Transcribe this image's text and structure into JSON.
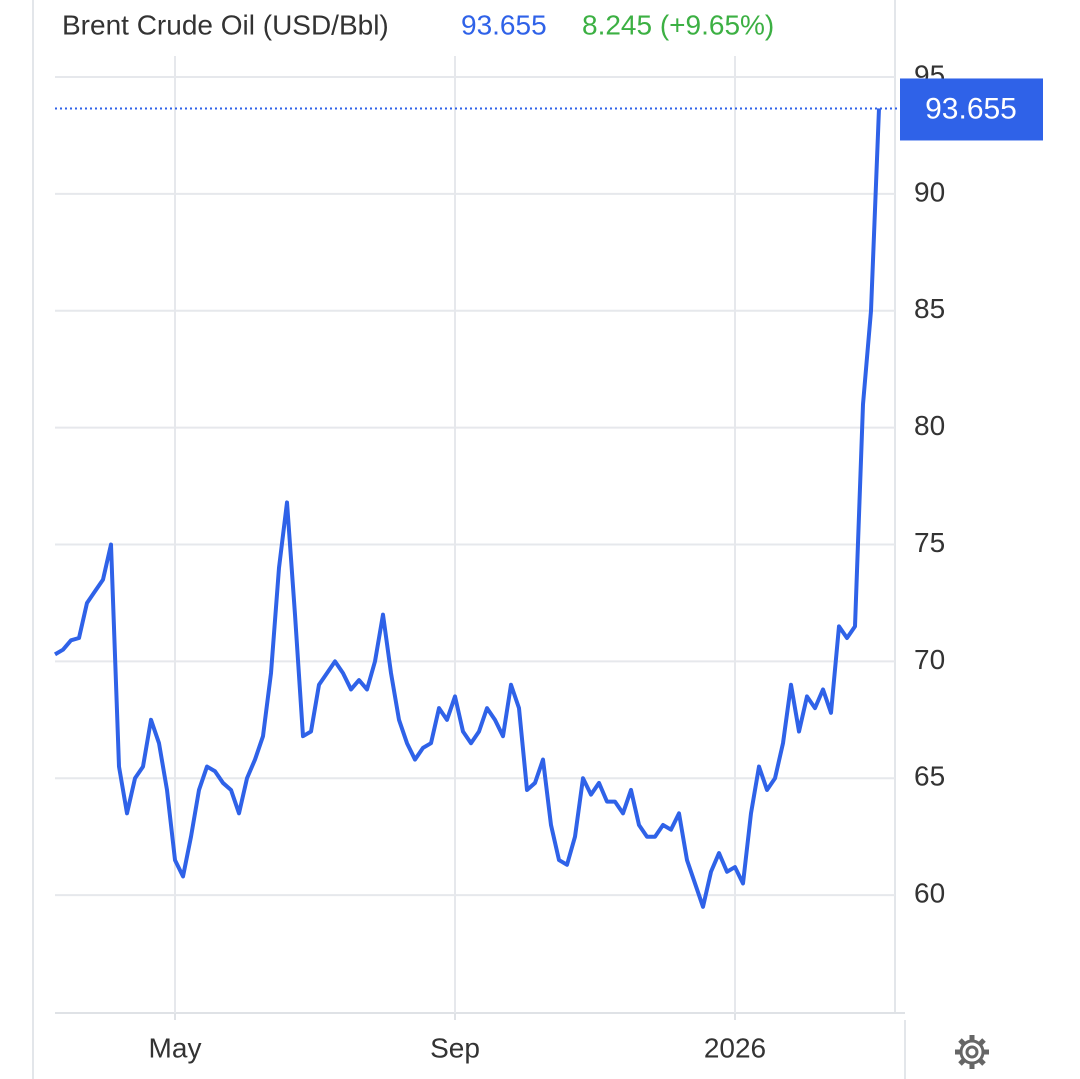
{
  "header": {
    "title": "Brent Crude Oil (USD/Bbl)",
    "price": "93.655",
    "change": "8.245 (+9.65%)"
  },
  "chart_data": {
    "type": "line",
    "color": "#2f62e8",
    "categories": [
      null,
      null,
      null,
      null,
      null,
      null,
      null,
      null,
      null,
      null,
      null,
      null,
      null,
      null,
      null,
      "May",
      null,
      null,
      null,
      null,
      null,
      null,
      null,
      null,
      null,
      null,
      null,
      null,
      null,
      null,
      null,
      null,
      null,
      null,
      null,
      null,
      null,
      null,
      null,
      null,
      null,
      null,
      null,
      null,
      null,
      null,
      null,
      null,
      null,
      null,
      "Sep",
      null,
      null,
      null,
      null,
      null,
      null,
      null,
      null,
      null,
      null,
      null,
      null,
      null,
      null,
      null,
      null,
      null,
      null,
      null,
      null,
      null,
      null,
      null,
      null,
      null,
      null,
      null,
      null,
      null,
      null,
      null,
      null,
      null,
      null,
      "2026",
      null,
      null,
      null,
      null,
      null,
      null,
      null,
      null,
      null,
      null,
      null,
      null,
      null,
      null,
      null,
      null,
      null,
      null
    ],
    "values": [
      70.3,
      70.5,
      70.9,
      71.0,
      72.5,
      73.0,
      73.5,
      75.0,
      65.5,
      63.5,
      65.0,
      65.5,
      67.5,
      66.5,
      64.5,
      61.5,
      60.8,
      62.5,
      64.5,
      65.5,
      65.3,
      64.8,
      64.5,
      63.5,
      65.0,
      65.8,
      66.8,
      69.5,
      74.0,
      76.8,
      72.0,
      66.8,
      67.0,
      69.0,
      69.5,
      70.0,
      69.5,
      68.8,
      69.2,
      68.8,
      70.0,
      72.0,
      69.5,
      67.5,
      66.5,
      65.8,
      66.3,
      66.5,
      68.0,
      67.5,
      68.5,
      67.0,
      66.5,
      67.0,
      68.0,
      67.5,
      66.8,
      69.0,
      68.0,
      64.5,
      64.8,
      65.8,
      63.0,
      61.5,
      61.3,
      62.5,
      65.0,
      64.3,
      64.8,
      64.0,
      64.0,
      63.5,
      64.5,
      63.0,
      62.5,
      62.5,
      63.0,
      62.8,
      63.5,
      61.5,
      60.5,
      59.5,
      61.0,
      61.8,
      61.0,
      61.2,
      60.5,
      63.5,
      65.5,
      64.5,
      65.0,
      66.5,
      69.0,
      67.0,
      68.5,
      68.0,
      68.8,
      67.8,
      71.5,
      71.0,
      71.5,
      81.0,
      85.0,
      93.655
    ],
    "ylim": [
      55,
      95.9
    ],
    "yticks": [
      60,
      65,
      70,
      75,
      80,
      85,
      90,
      95
    ],
    "grid": true
  }
}
